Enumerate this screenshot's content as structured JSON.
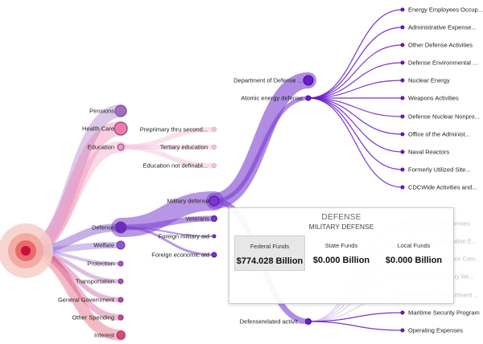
{
  "colors": {
    "purple": "#6b1ec9",
    "lightPurple": "#b79be3",
    "pink": "#e85a8f",
    "root": "#c9103a"
  },
  "root_groups": [
    {
      "label": "Pensions",
      "color": "#a070c0"
    },
    {
      "label": "Health Care",
      "color": "#f07aaa"
    },
    {
      "label": "Education",
      "color": "#f29bc0"
    },
    {
      "label": "Defense",
      "color": "#6a2bc2"
    },
    {
      "label": "Welfare",
      "color": "#8a5ad0"
    },
    {
      "label": "Protection",
      "color": "#9a5ac8"
    },
    {
      "label": "Transportation",
      "color": "#b050b0"
    },
    {
      "label": "General Government",
      "color": "#c04898"
    },
    {
      "label": "Other Spending",
      "color": "#d04a88"
    },
    {
      "label": "Interest",
      "color": "#e04a6a"
    }
  ],
  "education_children": [
    "Preprimary thru second...",
    "Tertiary education",
    "Education not definabl..."
  ],
  "defense_children": [
    "Military defense",
    "Veterans",
    "Foreign military aid",
    "Foreign economic aid"
  ],
  "military_children": [
    "Department of Defense ...",
    "Atomic energy defense",
    "Defenserelated activit..."
  ],
  "atomic_children": [
    "Energy Employees Occup...",
    "Administrative Expense...",
    "Other Defense Activities",
    "Defense Environmental ...",
    "Nuclear Energy",
    "Weapons Activities",
    "Defense Nuclear Nonpro...",
    "Office of the Administ...",
    "Naval Reactors",
    "Formerly Utilized Site...",
    "CDCWide Activities and..."
  ],
  "defrel_children": [
    "Salaries and Expenses",
    "Payment to Radiation E...",
    "Radiation Exposure Com...",
    "Payment to Military Re...",
    "Payment to Department ...",
    "Maritime Security Program",
    "Operating Expenses"
  ],
  "tooltip": {
    "title": "DEFENSE",
    "subtitle": "MILITARY DEFENSE",
    "federal_label": "Federal Funds",
    "federal_value": "$774.028 Billion",
    "state_label": "State Funds",
    "state_value": "$0.000 Billion",
    "local_label": "Local Funds",
    "local_value": "$0.000 Billion"
  }
}
